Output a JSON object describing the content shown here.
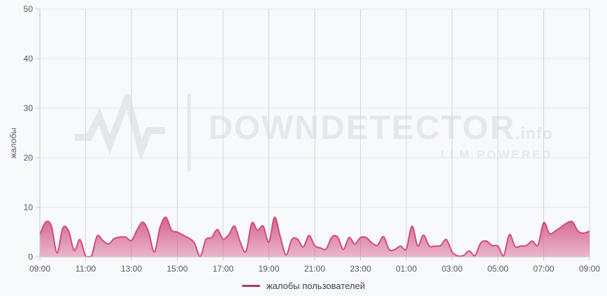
{
  "watermark": {
    "brand": "DOWNDETECTOR",
    "tld": ".info",
    "tagline": "LLM POWERED",
    "icon": "heartbeat-pulse-icon",
    "color": "#e4e7ec"
  },
  "legend": {
    "label": "жалобы пользователей",
    "swatch_color": "#a83a6b"
  },
  "chart": {
    "ylabel": "жалобы",
    "colors": {
      "background": "#f8f9fb",
      "line": "#d14d78",
      "fill_top": "rgba(209,73,123,0.85)",
      "fill_bottom": "rgba(209,73,123,0.38)",
      "grid_h": "#e6e8eb",
      "grid_v": "#d3d6db",
      "axis": "#c6c9ce",
      "tick_text": "#53575e"
    }
  },
  "chart_data": {
    "type": "area",
    "title": "",
    "xlabel": "",
    "ylabel": "жалобы",
    "ylim": [
      0,
      50
    ],
    "y_ticks": [
      0,
      10,
      20,
      30,
      40,
      50
    ],
    "x_tick_labels": [
      "09:00",
      "11:00",
      "13:00",
      "15:00",
      "17:00",
      "19:00",
      "21:00",
      "23:00",
      "01:00",
      "03:00",
      "05:00",
      "07:00",
      "09:00"
    ],
    "grid": true,
    "legend_position": "bottom",
    "time_start": "09:00",
    "interval_minutes": 15,
    "series": [
      {
        "name": "жалобы пользователей",
        "color": "#d14d78",
        "values": [
          4.5,
          7,
          6.3,
          0.8,
          5.8,
          5.3,
          1.3,
          3.5,
          0.1,
          0.1,
          4.2,
          3.3,
          2.6,
          3.7,
          4,
          4,
          3.3,
          5.5,
          7,
          5,
          1,
          6,
          8,
          5.4,
          5,
          4.4,
          3.8,
          2.8,
          0.1,
          3.5,
          3.9,
          5.5,
          3.6,
          4.5,
          6.2,
          3,
          1.1,
          6.8,
          5.4,
          6.2,
          3,
          8,
          4,
          0.4,
          3.5,
          3.6,
          2,
          4.3,
          2.3,
          1.8,
          1.6,
          4,
          4,
          1.5,
          3.9,
          2.6,
          3.9,
          3.9,
          2.8,
          2.4,
          4.1,
          1.5,
          1.5,
          2.2,
          1.6,
          6.2,
          2.2,
          4.4,
          2.2,
          2.2,
          2.3,
          3.5,
          1,
          0.2,
          0.3,
          1.2,
          0.3,
          2.8,
          3.2,
          2.3,
          2.2,
          0.2,
          4.5,
          2.1,
          2.2,
          2.3,
          3.2,
          2.4,
          6.9,
          4.7,
          5.2,
          6,
          6.8,
          7.1,
          5.2,
          4.8,
          5.2
        ]
      }
    ]
  }
}
